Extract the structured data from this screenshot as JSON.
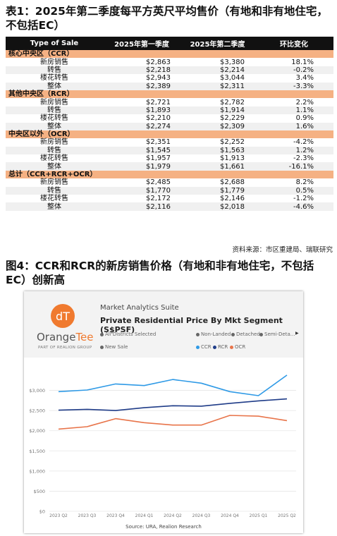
{
  "table_title": "表1：2025年第二季度每平方英尺平均售价（有地和非有地住宅，不包括EC）",
  "table": {
    "headers": [
      "Type of Sale",
      "2025年第一季度",
      "2025年第二季度",
      "环比变化"
    ],
    "sections": [
      {
        "name": "核心中央区（CCR）",
        "rows": [
          [
            "新房销售",
            "$2,863",
            "$3,380",
            "18.1%"
          ],
          [
            "转售",
            "$2,218",
            "$2,214",
            "-0.2%"
          ],
          [
            "楼花转售",
            "$2,943",
            "$3,044",
            "3.4%"
          ],
          [
            "整体",
            "$2,389",
            "$2,311",
            "-3.3%"
          ]
        ]
      },
      {
        "name": "其他中央区（RCR）",
        "rows": [
          [
            "新房销售",
            "$2,721",
            "$2,782",
            "2.2%"
          ],
          [
            "转售",
            "$1,893",
            "$1,914",
            "1.1%"
          ],
          [
            "楼花转售",
            "$2,210",
            "$2,229",
            "0.9%"
          ],
          [
            "整体",
            "$2,274",
            "$2,309",
            "1.6%"
          ]
        ]
      },
      {
        "name": "中央区以外（OCR）",
        "rows": [
          [
            "新房销售",
            "$2,351",
            "$2,252",
            "-4.2%"
          ],
          [
            "转售",
            "$1,545",
            "$1,563",
            "1.2%"
          ],
          [
            "楼花转售",
            "$1,957",
            "$1,913",
            "-2.3%"
          ],
          [
            "整体",
            "$1,979",
            "$1,661",
            "-16.1%"
          ]
        ]
      },
      {
        "name": "总计（CCR+RCR+OCR）",
        "rows": [
          [
            "新房销售",
            "$2,485",
            "$2,688",
            "8.2%"
          ],
          [
            "转售",
            "$1,770",
            "$1,779",
            "0.5%"
          ],
          [
            "楼花转售",
            "$2,172",
            "$2,146",
            "-1.2%"
          ],
          [
            "整体",
            "$2,116",
            "$2,018",
            "-4.6%"
          ]
        ]
      }
    ],
    "source": "资料来源：市区重建局、瑞联研究"
  },
  "figure_title": "图4：CCR和RCR的新房销售价格（有地和非有地住宅，不包括EC）创新高",
  "card": {
    "logo_main": "Orange",
    "logo_accent": "Tee",
    "logo_sub": "PART OF REALION GROUP",
    "suite": "Market Analytics Suite",
    "title": "Private Residential Price By Mkt Segment (S$PSF)",
    "filters": [
      "All Districts Selected",
      "Non-Landed",
      "Detached",
      "Semi-Deta...",
      "New Sale"
    ],
    "source": "Source: URA, Realion Research"
  },
  "colors": {
    "CCR": "#2f9ae6",
    "RCR": "#1f3c88",
    "OCR": "#e8744a",
    "header": "#111111",
    "section": "#f5b183"
  },
  "chart_data": {
    "type": "line",
    "x": [
      "2023 Q2",
      "2023 Q3",
      "2023 Q4",
      "2024 Q1",
      "2024 Q2",
      "2024 Q3",
      "2024 Q4",
      "2025 Q1",
      "2025 Q2"
    ],
    "series": [
      {
        "name": "CCR",
        "values": [
          2970,
          3010,
          3160,
          3120,
          3270,
          3180,
          2970,
          2870,
          3380
        ]
      },
      {
        "name": "RCR",
        "values": [
          2510,
          2530,
          2500,
          2570,
          2620,
          2610,
          2680,
          2740,
          2790
        ]
      },
      {
        "name": "OCR",
        "values": [
          2040,
          2100,
          2300,
          2200,
          2140,
          2140,
          2380,
          2360,
          2250
        ]
      }
    ],
    "y_ticks": [
      "$3,000",
      "$2,500",
      "$2,000",
      "$1,500",
      "$1,000",
      "$500",
      "$0"
    ],
    "ylim": [
      0,
      3500
    ],
    "grid": true,
    "legend": "top"
  }
}
